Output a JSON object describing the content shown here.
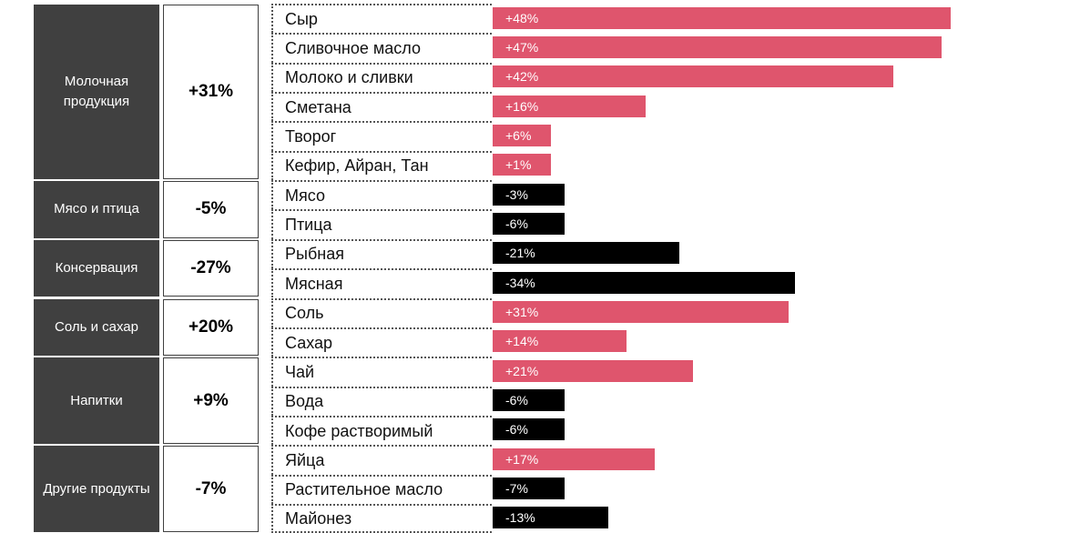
{
  "colors": {
    "positive": "#df556d",
    "negative": "#000000",
    "category": "#404040"
  },
  "chart_data": {
    "type": "bar",
    "orientation": "horizontal",
    "groups": [
      {
        "name": "Молочная продукция",
        "change": "+31%",
        "items": [
          {
            "label": "Сыр",
            "value": 48,
            "value_label": "+48%"
          },
          {
            "label": "Сливочное масло",
            "value": 47,
            "value_label": "+47%"
          },
          {
            "label": "Молоко и сливки",
            "value": 42,
            "value_label": "+42%"
          },
          {
            "label": "Сметана",
            "value": 16,
            "value_label": "+16%"
          },
          {
            "label": "Творог",
            "value": 6,
            "value_label": "+6%"
          },
          {
            "label": "Кефир, Айран, Тан",
            "value": 1,
            "value_label": "+1%"
          }
        ]
      },
      {
        "name": "Мясо и птица",
        "change": "-5%",
        "items": [
          {
            "label": "Мясо",
            "value": -3,
            "value_label": "-3%"
          },
          {
            "label": "Птица",
            "value": -6,
            "value_label": "-6%"
          }
        ]
      },
      {
        "name": "Консервация",
        "change": "-27%",
        "items": [
          {
            "label": "Рыбная",
            "value": -21,
            "value_label": "-21%"
          },
          {
            "label": "Мясная",
            "value": -34,
            "value_label": "-34%"
          }
        ]
      },
      {
        "name": "Соль и сахар",
        "change": "+20%",
        "items": [
          {
            "label": "Соль",
            "value": 31,
            "value_label": "+31%"
          },
          {
            "label": "Сахар",
            "value": 14,
            "value_label": "+14%"
          }
        ]
      },
      {
        "name": "Напитки",
        "change": "+9%",
        "items": [
          {
            "label": "Чай",
            "value": 21,
            "value_label": "+21%"
          },
          {
            "label": "Вода",
            "value": -6,
            "value_label": "-6%"
          },
          {
            "label": "Кофе растворимый",
            "value": -6,
            "value_label": "-6%"
          }
        ]
      },
      {
        "name": "Другие продукты",
        "change": "-7%",
        "items": [
          {
            "label": "Яйца",
            "value": 17,
            "value_label": "+17%"
          },
          {
            "label": "Растительное масло",
            "value": -7,
            "value_label": "-7%"
          },
          {
            "label": "Майонез",
            "value": -13,
            "value_label": "-13%"
          }
        ]
      }
    ]
  }
}
